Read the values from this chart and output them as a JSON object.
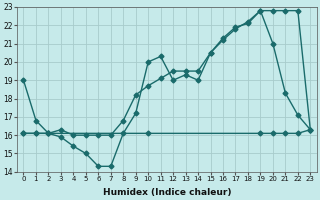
{
  "xlabel": "Humidex (Indice chaleur)",
  "ylabel": "",
  "bg_color": "#c6eaea",
  "grid_color": "#a8cccc",
  "line_color": "#1a6b6b",
  "xlim": [
    -0.5,
    23.5
  ],
  "ylim": [
    14,
    23
  ],
  "yticks": [
    14,
    15,
    16,
    17,
    18,
    19,
    20,
    21,
    22,
    23
  ],
  "xticks": [
    0,
    1,
    2,
    3,
    4,
    5,
    6,
    7,
    8,
    9,
    10,
    11,
    12,
    13,
    14,
    15,
    16,
    17,
    18,
    19,
    20,
    21,
    22,
    23
  ],
  "line1_x": [
    0,
    1,
    2,
    3,
    4,
    5,
    6,
    7,
    8,
    9,
    10,
    11,
    12,
    13,
    14,
    15,
    16,
    17,
    18,
    19,
    20,
    21,
    22,
    23
  ],
  "line1_y": [
    19.0,
    16.8,
    16.1,
    15.9,
    15.4,
    15.0,
    14.3,
    14.3,
    16.1,
    17.2,
    20.0,
    20.3,
    19.0,
    19.3,
    19.0,
    20.5,
    21.3,
    21.9,
    22.1,
    22.8,
    21.0,
    18.3,
    17.1,
    16.3
  ],
  "line2_x": [
    0,
    1,
    2,
    3,
    4,
    5,
    6,
    7,
    8,
    9,
    10,
    11,
    12,
    13,
    14,
    15,
    16,
    17,
    18,
    19,
    20,
    21,
    22,
    23
  ],
  "line2_y": [
    16.1,
    16.1,
    16.1,
    16.3,
    16.0,
    16.0,
    16.0,
    16.0,
    16.8,
    18.2,
    18.7,
    19.1,
    19.5,
    19.5,
    19.5,
    20.5,
    21.2,
    21.8,
    22.2,
    22.8,
    22.8,
    22.8,
    22.8,
    16.3
  ],
  "line3_x": [
    0,
    1,
    2,
    10,
    19,
    20,
    21,
    22,
    23
  ],
  "line3_y": [
    16.1,
    16.1,
    16.1,
    16.1,
    16.1,
    16.1,
    16.1,
    16.1,
    16.3
  ],
  "marker": "D",
  "marker_size": 2.5,
  "linewidth": 1.0
}
